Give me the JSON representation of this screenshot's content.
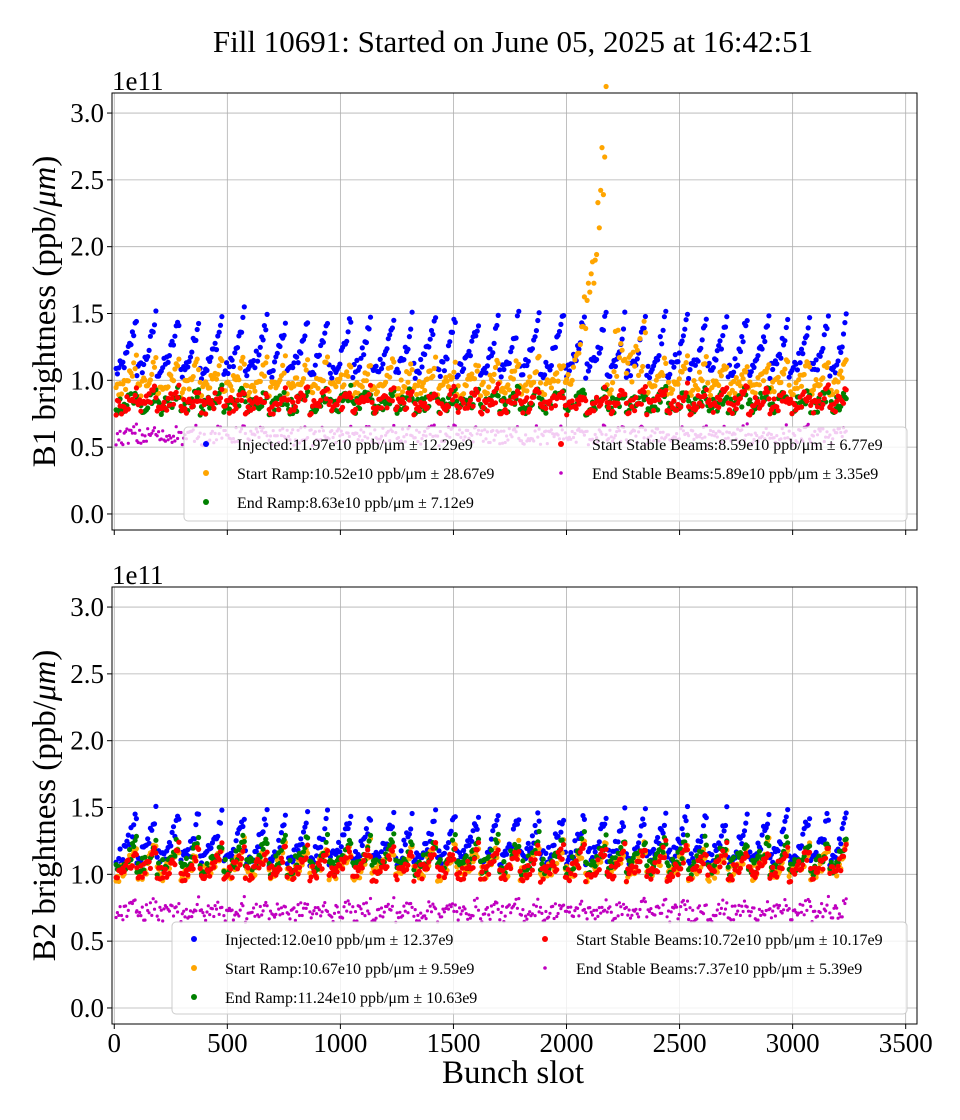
{
  "chart_data": {
    "type": "scatter",
    "title": "Fill 10691: Started on June 05, 2025 at 16:42:51",
    "xlabel": "Bunch slot",
    "xlim": [
      -10,
      3550
    ],
    "xticks": [
      0,
      500,
      1000,
      1500,
      2000,
      2500,
      3000,
      3500
    ],
    "grid": true,
    "panels": [
      {
        "ylabel_text": "B1 brightness (ppb/",
        "ylabel_unit": "μm",
        "ylabel_close": ")",
        "offset_text": "1e11",
        "ylim": [
          -0.12,
          3.15
        ],
        "yticks": [
          "0.0",
          "0.5",
          "1.0",
          "1.5",
          "2.0",
          "2.5",
          "3.0"
        ],
        "legend_location": "lower-right",
        "series": [
          {
            "name": "Injected:11.97e10 ppb/μm ± 12.29e9",
            "color": "#0000ff",
            "mean": 11.97,
            "base": 1.07,
            "rise": 0.42
          },
          {
            "name": "Start Ramp:10.52e10 ppb/μm ± 28.67e9",
            "color": "#ffa500",
            "mean": 10.52,
            "base": 0.93,
            "rise": 0.22
          },
          {
            "name": "End Ramp:8.63e10 ppb/μm ± 7.12e9",
            "color": "#008000",
            "mean": 8.63,
            "base": 0.8,
            "rise": 0.12
          },
          {
            "name": "Start Stable Beams:8.59e10 ppb/μm ± 6.77e9",
            "color": "#ff0000",
            "mean": 8.59,
            "base": 0.8,
            "rise": 0.12
          },
          {
            "name": "End Stable Beams:5.89e10 ppb/μm ± 3.35e9",
            "color": "#c000c0",
            "mean": 5.89,
            "base": 0.57,
            "rise": 0.05
          }
        ]
      },
      {
        "ylabel_text": "B2 brightness (ppb/",
        "ylabel_unit": "μm",
        "ylabel_close": ")",
        "offset_text": "1e11",
        "ylim": [
          -0.12,
          3.15
        ],
        "yticks": [
          "0.0",
          "0.5",
          "1.0",
          "1.5",
          "2.0",
          "2.5",
          "3.0"
        ],
        "legend_location": "lower-right",
        "series": [
          {
            "name": "Injected:12.0e10 ppb/μm ± 12.37e9",
            "color": "#0000ff",
            "mean": 12.0,
            "base": 1.12,
            "rise": 0.34
          },
          {
            "name": "Start Ramp:10.67e10 ppb/μm ± 9.59e9",
            "color": "#ffa500",
            "mean": 10.67,
            "base": 1.0,
            "rise": 0.22
          },
          {
            "name": "End Ramp:11.24e10 ppb/μm ± 10.63e9",
            "color": "#008000",
            "mean": 11.24,
            "base": 1.05,
            "rise": 0.22
          },
          {
            "name": "Start Stable Beams:10.72e10 ppb/μm ± 10.17e9",
            "color": "#ff0000",
            "mean": 10.72,
            "base": 1.0,
            "rise": 0.2
          },
          {
            "name": "End Stable Beams:7.37e10 ppb/μm ± 5.39e9",
            "color": "#c000c0",
            "mean": 7.37,
            "base": 0.7,
            "rise": 0.08
          }
        ]
      }
    ],
    "trains": [
      [
        8,
        100
      ],
      [
        100,
        185
      ],
      [
        190,
        290
      ],
      [
        295,
        375
      ],
      [
        380,
        480
      ],
      [
        485,
        575
      ],
      [
        580,
        680
      ],
      [
        685,
        760
      ],
      [
        765,
        860
      ],
      [
        865,
        945
      ],
      [
        950,
        1050
      ],
      [
        1055,
        1135
      ],
      [
        1140,
        1240
      ],
      [
        1245,
        1320
      ],
      [
        1325,
        1425
      ],
      [
        1430,
        1510
      ],
      [
        1515,
        1615
      ],
      [
        1620,
        1700
      ],
      [
        1705,
        1790
      ],
      [
        1795,
        1880
      ],
      [
        1885,
        1990
      ],
      [
        1995,
        2080
      ],
      [
        2085,
        2175
      ],
      [
        2180,
        2260
      ],
      [
        2265,
        2350
      ],
      [
        2355,
        2440
      ],
      [
        2445,
        2535
      ],
      [
        2540,
        2620
      ],
      [
        2625,
        2710
      ],
      [
        2715,
        2800
      ],
      [
        2805,
        2895
      ],
      [
        2900,
        2980
      ],
      [
        2985,
        3075
      ],
      [
        3080,
        3160
      ],
      [
        3165,
        3240
      ]
    ]
  }
}
